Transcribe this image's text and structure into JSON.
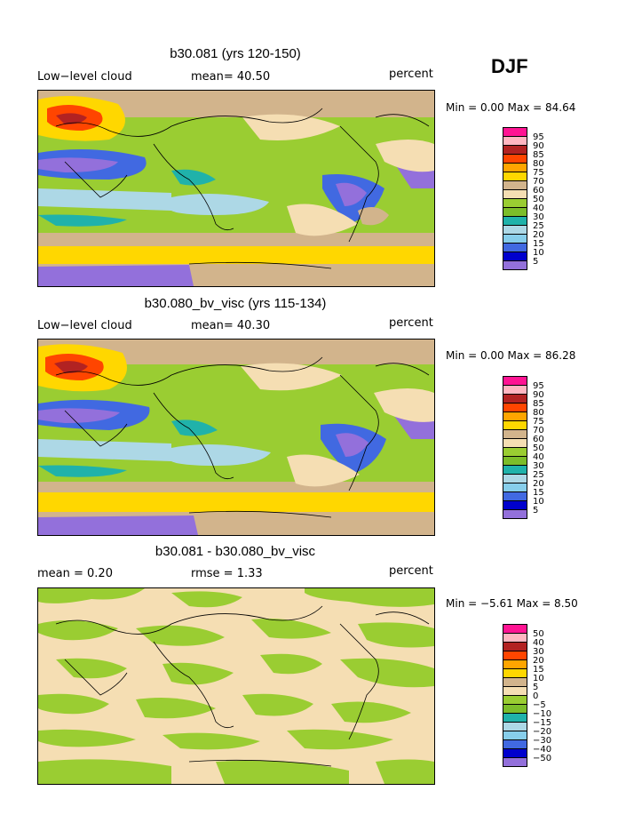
{
  "season": "DJF",
  "panels": [
    {
      "title": "b30.081 (yrs 120-150)",
      "left_label": "Low−level cloud",
      "center_label": "mean=  40.50",
      "right_label": "percent",
      "minmax": "Min =    0.00 Max =   84.64"
    },
    {
      "title": "b30.080_bv_visc (yrs 115-134)",
      "left_label": "Low−level cloud",
      "center_label": "mean=  40.30",
      "right_label": "percent",
      "minmax": "Min =    0.00 Max =   86.28"
    },
    {
      "title": "b30.081 - b30.080_bv_visc",
      "left_label": "mean =    0.20",
      "center_label": "rmse =    1.33",
      "right_label": "percent",
      "minmax": "Min =  −5.61 Max =    8.50"
    }
  ],
  "colorbar_abs": {
    "labels": [
      "95",
      "90",
      "85",
      "80",
      "75",
      "70",
      "60",
      "50",
      "40",
      "30",
      "25",
      "20",
      "15",
      "10",
      "5"
    ],
    "colors": [
      "#ff1493",
      "#ffb6c1",
      "#b22222",
      "#ff4500",
      "#ffa500",
      "#ffd700",
      "#d2b48c",
      "#f5deb3",
      "#9acd32",
      "#7cbd2a",
      "#20b2aa",
      "#add8e6",
      "#87ceeb",
      "#4169e1",
      "#0000cd",
      "#9370db"
    ]
  },
  "colorbar_diff": {
    "labels": [
      "50",
      "40",
      "30",
      "20",
      "15",
      "10",
      "5",
      "0",
      "−5",
      "−10",
      "−15",
      "−20",
      "−30",
      "−40",
      "−50"
    ],
    "colors": [
      "#ff1493",
      "#ffb6c1",
      "#b22222",
      "#ff4500",
      "#ffa500",
      "#ffd700",
      "#d2b48c",
      "#f5deb3",
      "#9acd32",
      "#7cbd2a",
      "#20b2aa",
      "#add8e6",
      "#87ceeb",
      "#4169e1",
      "#0000cd",
      "#9370db"
    ]
  }
}
